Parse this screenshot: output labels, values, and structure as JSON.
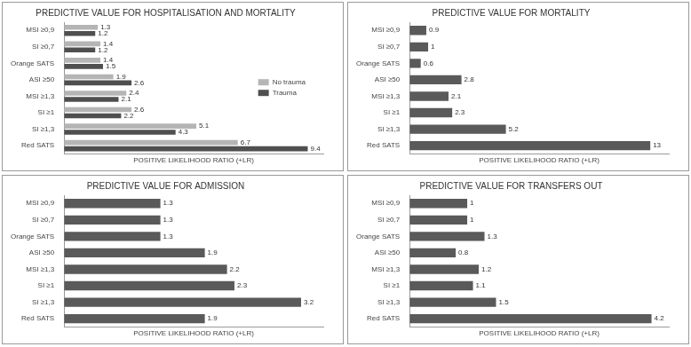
{
  "chart_data": [
    {
      "type": "bar",
      "title": "PREDICTIVE VALUE FOR HOSPITALISATION AND MORTALITY",
      "xlabel": "POSITIVE LIKELIHOOD RATIO (+LR)",
      "orientation": "horizontal",
      "categories": [
        "MSI ≥0,9",
        "SI ≥0,7",
        "Orange SATS",
        "ASI ≥50",
        "MSI ≥1,3",
        "SI ≥1",
        "SI ≥1,3",
        "Red SATS"
      ],
      "series": [
        {
          "name": "No trauma",
          "color": "#b5b5b5",
          "values": [
            1.3,
            1.4,
            1.4,
            1.9,
            2.4,
            2.6,
            5.1,
            6.7
          ]
        },
        {
          "name": "Trauma",
          "color": "#4f4f4f",
          "values": [
            1.2,
            1.2,
            1.5,
            2.6,
            2.1,
            2.2,
            4.3,
            9.4
          ]
        }
      ],
      "xlim": [
        0,
        10
      ],
      "legend": "right",
      "data_labels": true,
      "tick_labels": "y",
      "grid": false
    },
    {
      "type": "bar",
      "title": "PREDICTIVE VALUE FOR MORTALITY",
      "xlabel": "POSITIVE LIKELIHOOD RATIO (+LR)",
      "orientation": "horizontal",
      "categories": [
        "MSI ≥0,9",
        "SI ≥0,7",
        "Orange SATS",
        "ASI ≥50",
        "MSI ≥1,3",
        "SI ≥1",
        "SI ≥1,3",
        "Red SATS"
      ],
      "values": [
        0.9,
        1,
        0.6,
        2.8,
        2.1,
        2.3,
        5.2,
        13
      ],
      "color": "#5a5a5a",
      "xlim": [
        0,
        14
      ],
      "data_labels": true,
      "tick_labels": "y",
      "grid": false
    },
    {
      "type": "bar",
      "title": "PREDICTIVE VALUE FOR ADMISSION",
      "xlabel": "POSITIVE LIKELIHOOD RATIO (+LR)",
      "orientation": "horizontal",
      "categories": [
        "MSI ≥0,9",
        "SI ≥0,7",
        "Orange SATS",
        "ASI ≥50",
        "MSI ≥1,3",
        "SI ≥1",
        "SI ≥1,3",
        "Red SATS"
      ],
      "values": [
        1.3,
        1.3,
        1.3,
        1.9,
        2.2,
        2.3,
        3.2,
        1.9
      ],
      "color": "#5a5a5a",
      "xlim": [
        0,
        3.5
      ],
      "data_labels": true,
      "tick_labels": "y",
      "grid": false
    },
    {
      "type": "bar",
      "title": "PREDICTIVE VALUE FOR TRANSFERS OUT",
      "xlabel": "POSITIVE LIKELIHOOD RATIO (+LR)",
      "orientation": "horizontal",
      "categories": [
        "MSI ≥0,9",
        "SI ≥0,7",
        "Orange SATS",
        "ASI ≥50",
        "MSI ≥1,3",
        "SI ≥1",
        "SI ≥1,3",
        "Red SATS"
      ],
      "values": [
        1,
        1,
        1.3,
        0.8,
        1.2,
        1.1,
        1.5,
        4.2
      ],
      "color": "#5a5a5a",
      "xlim": [
        0,
        4.5
      ],
      "data_labels": true,
      "tick_labels": "y",
      "grid": false
    }
  ]
}
